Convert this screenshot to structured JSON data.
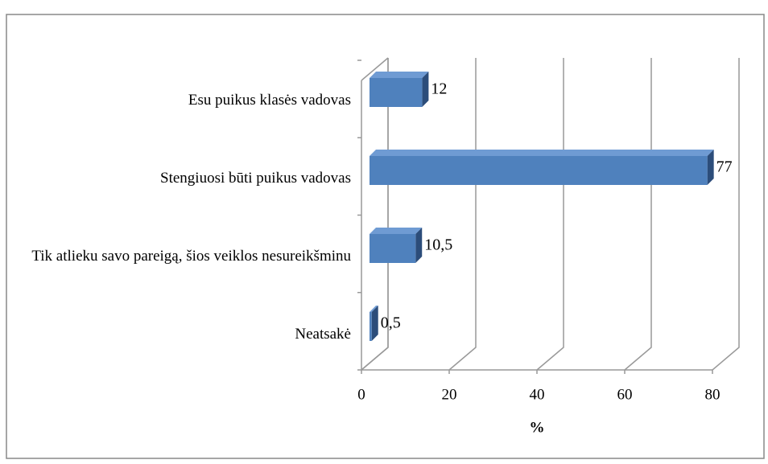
{
  "chart_data": {
    "type": "bar3d_horizontal",
    "categories": [
      "Esu puikus klasės vadovas",
      "Stengiuosi būti puikus vadovas",
      "Tik atlieku savo pareigą, šios veiklos nesureikšminu",
      "Neatsakė"
    ],
    "values": [
      12,
      77,
      10.5,
      0.5
    ],
    "value_labels": [
      "12",
      "77",
      "10,5",
      "0,5"
    ],
    "color": "#4f81bd",
    "xlim": [
      0,
      80
    ],
    "xticks": [
      0,
      20,
      40,
      60,
      80
    ],
    "x_label": "%",
    "grid": true
  }
}
